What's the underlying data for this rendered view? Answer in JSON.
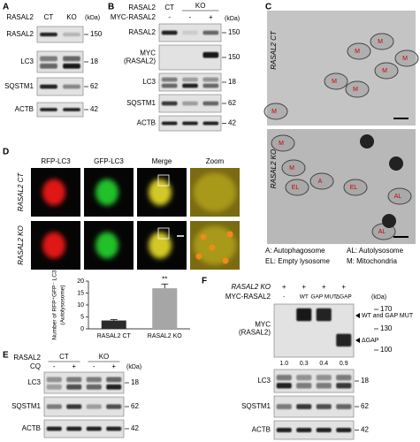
{
  "panel_a": {
    "label": "A",
    "group": "RASAL2",
    "lanes": [
      "CT",
      "KO"
    ],
    "unit": "(kDa)",
    "rows": [
      {
        "name": "RASAL2",
        "kda": 150
      },
      {
        "name": "LC3",
        "kda": 18
      },
      {
        "name": "SQSTM1",
        "kda": 62
      },
      {
        "name": "ACTB",
        "kda": 42
      }
    ]
  },
  "panel_b": {
    "label": "B",
    "group": "RASAL2",
    "group_lanes": [
      "CT",
      "KO"
    ],
    "treatment": "MYC-RASAL2",
    "treatment_lanes": [
      "-",
      "-",
      "+"
    ],
    "unit": "(kDa)",
    "rows": [
      {
        "name": "RASAL2",
        "kda": 150
      },
      {
        "name": [
          "MYC",
          "(RASAL2)"
        ],
        "kda": 150
      },
      {
        "name": "LC3",
        "kda": 18
      },
      {
        "name": "SQSTM1",
        "kda": 62
      },
      {
        "name": "ACTB",
        "kda": 42
      }
    ]
  },
  "panel_c": {
    "label": "C",
    "images": [
      {
        "label": "RASAL2 CT",
        "annotations": [
          "M",
          "M",
          "M",
          "M",
          "M",
          "M",
          "M"
        ]
      },
      {
        "label": "RASAL2 KO",
        "annotations": [
          "M",
          "M",
          "EL",
          "A",
          "EL",
          "AL",
          "AL"
        ]
      }
    ],
    "legend": [
      "A: Autophagosome",
      "AL: Autolysosome",
      "EL: Empty lysosome",
      "M: Mitochondria"
    ]
  },
  "panel_d": {
    "label": "D",
    "columns": [
      "RFP-LC3",
      "GFP-LC3",
      "Merge",
      "Zoom"
    ],
    "rows": [
      "RASAL2 CT",
      "RASAL2 KO"
    ]
  },
  "chart_data": {
    "type": "bar",
    "ylabel": [
      "Number of RFP⁺GFP⁻ LC3",
      "(Autolysosome)"
    ],
    "categories": [
      "RASAL2 CT",
      "RASAL2 KO"
    ],
    "values": [
      3.5,
      17
    ],
    "errors": [
      0.4,
      1.8
    ],
    "colors": [
      "#2b2b2b",
      "#a6a6a6"
    ],
    "ylim": [
      0,
      20
    ],
    "yticks": [
      0,
      5,
      10,
      15,
      20
    ],
    "annotation": "**"
  },
  "panel_e": {
    "label": "E",
    "group": "RASAL2",
    "group_lanes": [
      "CT",
      "KO"
    ],
    "treatment": "CQ",
    "treatment_lanes": [
      "-",
      "+",
      "-",
      "+"
    ],
    "unit": "(kDa)",
    "rows": [
      {
        "name": "LC3",
        "kda": 18
      },
      {
        "name": "SQSTM1",
        "kda": 62
      },
      {
        "name": "ACTB",
        "kda": 42
      }
    ]
  },
  "panel_f": {
    "label": "F",
    "group": "RASAL2 KO",
    "group_lanes": [
      "+",
      "+",
      "+",
      "+"
    ],
    "treatment": "MYC-RASAL2",
    "treatment_lanes": [
      "-",
      "WT",
      "GAP MUT",
      "ΔGAP"
    ],
    "unit": "(kDa)",
    "myc": {
      "name": [
        "MYC",
        "(RASAL2)"
      ],
      "markers": [
        170,
        130,
        100
      ],
      "arrows": [
        "WT and GAP MUT",
        "ΔGAP"
      ],
      "ratios": [
        "1.0",
        "0.3",
        "0.4",
        "0.9"
      ]
    },
    "rows": [
      {
        "name": "LC3",
        "kda": 18
      },
      {
        "name": "SQSTM1",
        "kda": 62
      },
      {
        "name": "ACTB",
        "kda": 42
      }
    ]
  }
}
